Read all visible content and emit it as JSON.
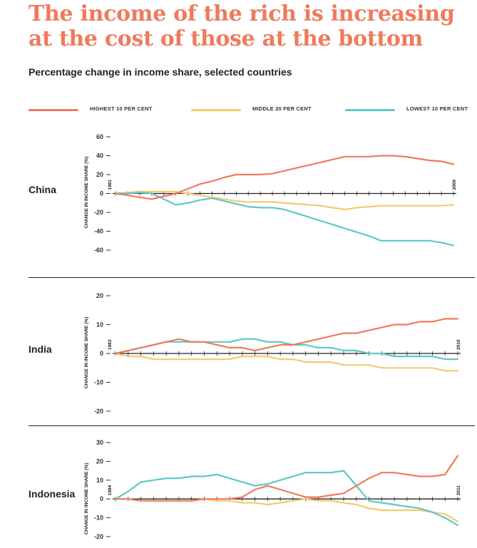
{
  "title": "The income of the rich is increasing at the cost of those at the bottom",
  "subtitle": "Percentage change in income share, selected countries",
  "legend": [
    {
      "label": "HIGHEST 10 PER CENT",
      "color": "#ef7a5c"
    },
    {
      "label": "MIDDLE 20 PER CENT",
      "color": "#f7c96e"
    },
    {
      "label": "LOWEST 10 PER CENT",
      "color": "#5ec8c6"
    }
  ],
  "chart_data": [
    {
      "type": "line",
      "country": "China",
      "ylabel": "CHANGE IN INCOME SHARE (%)",
      "start_year": "1981",
      "end_year": "2009",
      "ylim": [
        -60,
        60
      ],
      "yticks": [
        60,
        40,
        20,
        0,
        -20,
        -40,
        -60
      ],
      "x": [
        1981,
        1982,
        1983,
        1984,
        1985,
        1986,
        1987,
        1988,
        1989,
        1990,
        1991,
        1992,
        1993,
        1994,
        1995,
        1996,
        1997,
        1998,
        1999,
        2000,
        2001,
        2002,
        2003,
        2004,
        2005,
        2006,
        2007,
        2008,
        2009
      ],
      "series": [
        {
          "name": "HIGHEST 10 PER CENT",
          "color": "#ef7a5c",
          "values": [
            0,
            -2,
            -4,
            -6,
            -3,
            0,
            5,
            10,
            13,
            17,
            20,
            20,
            20,
            21,
            24,
            27,
            30,
            33,
            36,
            39,
            39,
            39,
            40,
            40,
            39,
            37,
            35,
            34,
            31
          ]
        },
        {
          "name": "MIDDLE 20 PER CENT",
          "color": "#f7c96e",
          "values": [
            0,
            1,
            2,
            2,
            2,
            2,
            0,
            -2,
            -4,
            -6,
            -8,
            -9,
            -9,
            -9,
            -10,
            -11,
            -12,
            -13,
            -15,
            -17,
            -15,
            -14,
            -13,
            -13,
            -13,
            -13,
            -13,
            -13,
            -12
          ]
        },
        {
          "name": "LOWEST 10 PER CENT",
          "color": "#5ec8c6",
          "values": [
            0,
            0,
            1,
            0,
            -6,
            -12,
            -10,
            -7,
            -5,
            -8,
            -11,
            -14,
            -15,
            -15,
            -17,
            -21,
            -25,
            -29,
            -33,
            -37,
            -41,
            -45,
            -50,
            -50,
            -50,
            -50,
            -50,
            -52,
            -55
          ]
        }
      ]
    },
    {
      "type": "line",
      "country": "India",
      "ylabel": "CHANGE IN INCOME SHARE (%)",
      "start_year": "1983",
      "end_year": "2010",
      "ylim": [
        -20,
        20
      ],
      "yticks": [
        20,
        10,
        0,
        -10,
        -20
      ],
      "x": [
        1983,
        1984,
        1985,
        1986,
        1987,
        1988,
        1989,
        1990,
        1991,
        1992,
        1993,
        1994,
        1995,
        1996,
        1997,
        1998,
        1999,
        2000,
        2001,
        2002,
        2003,
        2004,
        2005,
        2006,
        2007,
        2008,
        2009,
        2010
      ],
      "series": [
        {
          "name": "HIGHEST 10 PER CENT",
          "color": "#ef7a5c",
          "values": [
            0,
            1,
            2,
            3,
            4,
            5,
            4,
            4,
            3,
            2,
            2,
            1,
            2,
            3,
            3,
            4,
            5,
            6,
            7,
            7,
            8,
            9,
            10,
            10,
            11,
            11,
            12,
            12
          ]
        },
        {
          "name": "MIDDLE 20 PER CENT",
          "color": "#f7c96e",
          "values": [
            0,
            -1,
            -1,
            -2,
            -2,
            -2,
            -2,
            -2,
            -2,
            -2,
            -1,
            -1,
            -1,
            -2,
            -2,
            -3,
            -3,
            -3,
            -4,
            -4,
            -4,
            -5,
            -5,
            -5,
            -5,
            -5,
            -6,
            -6
          ]
        },
        {
          "name": "LOWEST 10 PER CENT",
          "color": "#5ec8c6",
          "values": [
            0,
            1,
            2,
            3,
            4,
            4,
            4,
            4,
            4,
            4,
            5,
            5,
            4,
            4,
            3,
            3,
            2,
            2,
            1,
            1,
            0,
            0,
            -1,
            -1,
            -1,
            -1,
            -2,
            -2
          ]
        }
      ]
    },
    {
      "type": "line",
      "country": "Indonesia",
      "ylabel": "CHANGE IN INCOME SHARE (%)",
      "start_year": "1984",
      "end_year": "2011",
      "ylim": [
        -20,
        30
      ],
      "yticks": [
        30,
        20,
        10,
        0,
        -10,
        -20
      ],
      "x": [
        1984,
        1985,
        1986,
        1987,
        1988,
        1989,
        1990,
        1991,
        1992,
        1993,
        1994,
        1995,
        1996,
        1997,
        1998,
        1999,
        2000,
        2001,
        2002,
        2003,
        2004,
        2005,
        2006,
        2007,
        2008,
        2009,
        2010,
        2011
      ],
      "series": [
        {
          "name": "HIGHEST 10 PER CENT",
          "color": "#ef7a5c",
          "values": [
            0,
            0,
            -1,
            -1,
            -1,
            -1,
            -1,
            0,
            0,
            0,
            1,
            5,
            7,
            5,
            3,
            1,
            1,
            2,
            3,
            7,
            11,
            14,
            14,
            13,
            12,
            12,
            13,
            23
          ]
        },
        {
          "name": "MIDDLE 20 PER CENT",
          "color": "#f7c96e",
          "values": [
            0,
            0,
            -1,
            -1,
            -1,
            -1,
            -1,
            0,
            -1,
            -1,
            -2,
            -2,
            -3,
            -2,
            -1,
            0,
            -1,
            -1,
            -2,
            -3,
            -5,
            -6,
            -6,
            -6,
            -6,
            -7,
            -8,
            -12
          ]
        },
        {
          "name": "LOWEST 10 PER CENT",
          "color": "#5ec8c6",
          "values": [
            0,
            4,
            9,
            10,
            11,
            11,
            12,
            12,
            13,
            11,
            9,
            7,
            8,
            10,
            12,
            14,
            14,
            14,
            15,
            7,
            -1,
            -2,
            -3,
            -4,
            -5,
            -7,
            -10,
            -14
          ]
        }
      ]
    }
  ]
}
